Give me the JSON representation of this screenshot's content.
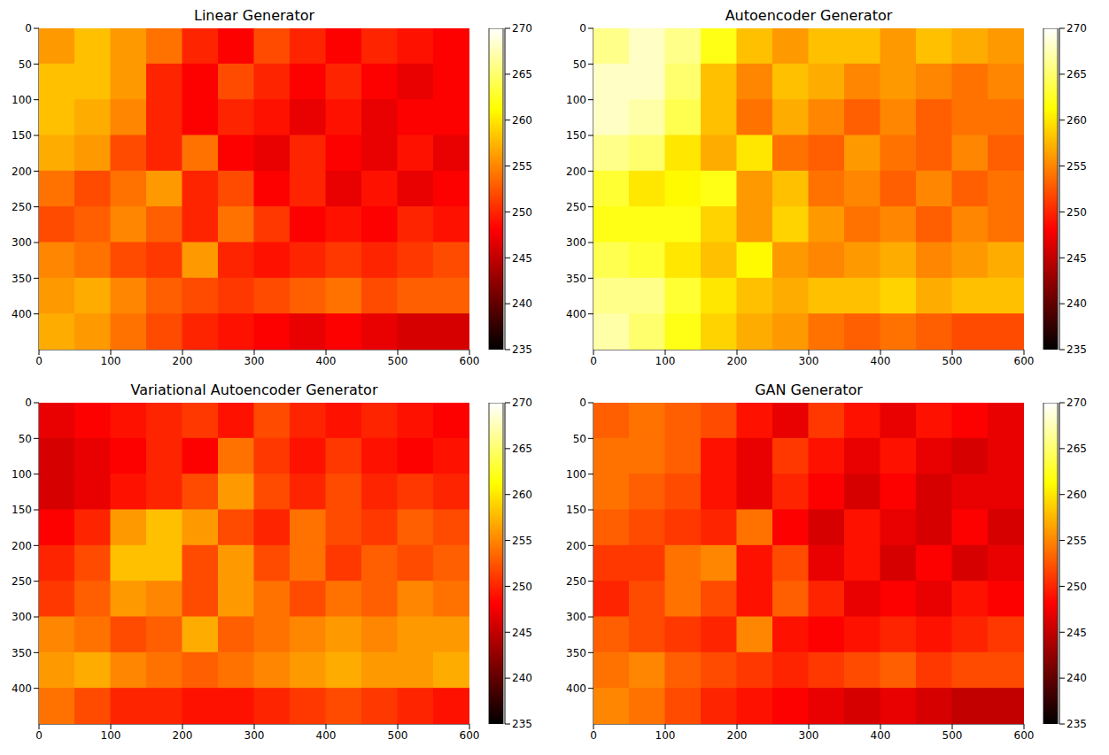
{
  "chart_data": [
    {
      "type": "heatmap",
      "title": "Linear Generator",
      "xlim": [
        0,
        600
      ],
      "xticks": [
        0,
        100,
        200,
        300,
        400,
        500,
        600
      ],
      "ylim": [
        450,
        0
      ],
      "yticks": [
        0,
        50,
        100,
        150,
        200,
        250,
        300,
        350,
        400
      ],
      "colorbar_range": [
        235,
        270
      ],
      "colorbar_ticks": [
        235,
        240,
        245,
        250,
        255,
        260,
        265,
        270
      ],
      "cells": [
        [
          256,
          258,
          256,
          254,
          250,
          248,
          252,
          250,
          248,
          250,
          249,
          248
        ],
        [
          258,
          258,
          256,
          250,
          248,
          252,
          250,
          248,
          250,
          248,
          247,
          248
        ],
        [
          258,
          257,
          255,
          250,
          248,
          250,
          249,
          247,
          249,
          247,
          248,
          248
        ],
        [
          257,
          256,
          252,
          250,
          254,
          248,
          247,
          250,
          248,
          247,
          249,
          247
        ],
        [
          254,
          252,
          254,
          256,
          250,
          252,
          248,
          250,
          247,
          249,
          247,
          248
        ],
        [
          252,
          253,
          255,
          253,
          250,
          254,
          251,
          248,
          249,
          248,
          250,
          249
        ],
        [
          255,
          254,
          252,
          251,
          256,
          250,
          249,
          250,
          251,
          250,
          251,
          252
        ],
        [
          256,
          257,
          255,
          253,
          252,
          251,
          252,
          253,
          254,
          252,
          253,
          253
        ],
        [
          257,
          256,
          254,
          252,
          250,
          249,
          248,
          247,
          248,
          247,
          246,
          246
        ]
      ]
    },
    {
      "type": "heatmap",
      "title": "Autoencoder Generator",
      "xlim": [
        0,
        600
      ],
      "xticks": [
        0,
        100,
        200,
        300,
        400,
        500,
        600
      ],
      "ylim": [
        450,
        0
      ],
      "yticks": [
        0,
        50,
        100,
        150,
        200,
        250,
        300,
        350,
        400
      ],
      "colorbar_range": [
        235,
        270
      ],
      "colorbar_ticks": [
        235,
        240,
        245,
        250,
        255,
        260,
        265,
        270
      ],
      "cells": [
        [
          266,
          268,
          266,
          262,
          258,
          256,
          258,
          258,
          256,
          258,
          257,
          256
        ],
        [
          268,
          268,
          265,
          258,
          255,
          258,
          257,
          255,
          256,
          255,
          254,
          255
        ],
        [
          268,
          267,
          264,
          258,
          254,
          257,
          255,
          253,
          255,
          253,
          254,
          254
        ],
        [
          266,
          265,
          260,
          257,
          260,
          254,
          253,
          256,
          254,
          253,
          255,
          253
        ],
        [
          263,
          260,
          261,
          262,
          256,
          258,
          254,
          255,
          253,
          255,
          253,
          254
        ],
        [
          262,
          262,
          262,
          259,
          256,
          259,
          256,
          254,
          255,
          253,
          255,
          254
        ],
        [
          264,
          263,
          260,
          258,
          261,
          256,
          255,
          256,
          257,
          255,
          256,
          257
        ],
        [
          266,
          266,
          263,
          260,
          258,
          257,
          258,
          258,
          259,
          257,
          258,
          258
        ],
        [
          267,
          265,
          262,
          259,
          257,
          256,
          254,
          253,
          254,
          253,
          252,
          252
        ]
      ]
    },
    {
      "type": "heatmap",
      "title": "Variational Autoencoder Generator",
      "xlim": [
        0,
        600
      ],
      "xticks": [
        0,
        100,
        200,
        300,
        400,
        500,
        600
      ],
      "ylim": [
        450,
        0
      ],
      "yticks": [
        0,
        50,
        100,
        150,
        200,
        250,
        300,
        350,
        400
      ],
      "colorbar_range": [
        235,
        270
      ],
      "colorbar_ticks": [
        235,
        240,
        245,
        250,
        255,
        260,
        265,
        270
      ],
      "cells": [
        [
          247,
          248,
          249,
          250,
          251,
          249,
          252,
          250,
          249,
          250,
          249,
          248
        ],
        [
          246,
          247,
          248,
          250,
          248,
          254,
          251,
          249,
          251,
          249,
          248,
          249
        ],
        [
          246,
          247,
          249,
          250,
          252,
          256,
          252,
          250,
          252,
          250,
          251,
          250
        ],
        [
          248,
          250,
          256,
          258,
          256,
          252,
          250,
          254,
          252,
          251,
          253,
          252
        ],
        [
          250,
          252,
          258,
          258,
          252,
          256,
          252,
          254,
          251,
          253,
          252,
          253
        ],
        [
          251,
          253,
          256,
          255,
          252,
          256,
          254,
          252,
          254,
          253,
          255,
          254
        ],
        [
          255,
          254,
          252,
          253,
          257,
          253,
          254,
          255,
          256,
          255,
          256,
          256
        ],
        [
          256,
          257,
          255,
          254,
          253,
          254,
          255,
          256,
          257,
          256,
          256,
          257
        ],
        [
          254,
          252,
          250,
          250,
          249,
          249,
          250,
          251,
          252,
          251,
          250,
          249
        ]
      ]
    },
    {
      "type": "heatmap",
      "title": "GAN Generator",
      "xlim": [
        0,
        600
      ],
      "xticks": [
        0,
        100,
        200,
        300,
        400,
        500,
        600
      ],
      "ylim": [
        450,
        0
      ],
      "yticks": [
        0,
        50,
        100,
        150,
        200,
        250,
        300,
        350,
        400
      ],
      "colorbar_range": [
        235,
        270
      ],
      "colorbar_ticks": [
        235,
        240,
        245,
        250,
        255,
        260,
        265,
        270
      ],
      "cells": [
        [
          253,
          254,
          253,
          252,
          249,
          247,
          251,
          249,
          247,
          249,
          248,
          247
        ],
        [
          254,
          254,
          253,
          249,
          247,
          251,
          249,
          247,
          249,
          247,
          246,
          247
        ],
        [
          254,
          253,
          252,
          249,
          247,
          250,
          248,
          246,
          248,
          246,
          247,
          247
        ],
        [
          253,
          252,
          251,
          250,
          254,
          248,
          246,
          249,
          247,
          246,
          248,
          246
        ],
        [
          251,
          251,
          254,
          255,
          249,
          252,
          247,
          249,
          246,
          248,
          246,
          247
        ],
        [
          250,
          252,
          254,
          252,
          249,
          253,
          250,
          247,
          248,
          247,
          249,
          248
        ],
        [
          253,
          252,
          251,
          250,
          255,
          249,
          248,
          249,
          250,
          249,
          250,
          251
        ],
        [
          254,
          255,
          253,
          252,
          251,
          250,
          251,
          252,
          253,
          251,
          252,
          252
        ],
        [
          255,
          254,
          252,
          250,
          249,
          248,
          247,
          246,
          247,
          246,
          245,
          245
        ]
      ]
    }
  ]
}
